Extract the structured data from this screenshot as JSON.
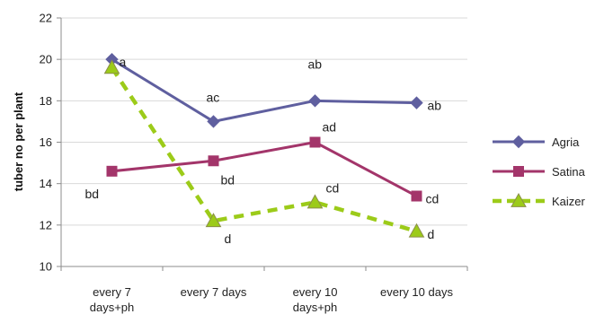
{
  "chart_data": {
    "type": "line",
    "ylabel": "tuber no per plant",
    "ylim": [
      10,
      22
    ],
    "ytick_step": 2,
    "grid": "horizontal",
    "legend_position": "right",
    "categories": [
      [
        "every 7",
        "days+ph"
      ],
      [
        "every 7 days"
      ],
      [
        "every 10",
        "days+ph"
      ],
      [
        "every 10 days"
      ]
    ],
    "series": [
      {
        "name": "Agria",
        "values": [
          20.0,
          17.0,
          18.0,
          17.9
        ],
        "labels": [
          "a",
          "ac",
          "ab",
          "ab"
        ],
        "color": "#5F5F9F",
        "marker": "diamond",
        "dash": "solid"
      },
      {
        "name": "Satina",
        "values": [
          14.6,
          15.1,
          16.0,
          13.4
        ],
        "labels": [
          "bd",
          "bd",
          "ad",
          "cd"
        ],
        "color": "#A3356A",
        "marker": "square",
        "dash": "solid"
      },
      {
        "name": "Kaizer",
        "values": [
          19.6,
          12.2,
          13.1,
          11.7
        ],
        "labels": [
          "",
          "d",
          "cd",
          "d"
        ],
        "color": "#9CCB19",
        "marker": "triangle",
        "dash": "dashed"
      }
    ]
  }
}
